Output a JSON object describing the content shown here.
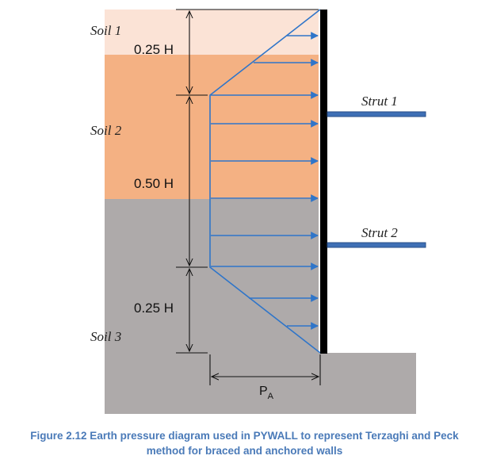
{
  "soils": {
    "soil1": "Soil 1",
    "soil2": "Soil 2",
    "soil3": "Soil 3"
  },
  "struts": {
    "strut1": "Strut 1",
    "strut2": "Strut 2"
  },
  "dimensions": {
    "top": "0.25 H",
    "middle": "0.50 H",
    "bottom": "0.25 H"
  },
  "pressure_label": {
    "main": "P",
    "subscript": "A"
  },
  "caption": {
    "line1": "Figure 2.12  Earth pressure diagram used in PYWALL to represent Terzaghi and Peck",
    "line2": "method for braced and anchored walls"
  },
  "colors": {
    "soil1": "#fbe3d6",
    "soil2": "#f4b183",
    "soil3": "#aeaaaa",
    "pressure": "#2f75c9",
    "wall": "#000000",
    "strut": "#3e6fb5"
  }
}
